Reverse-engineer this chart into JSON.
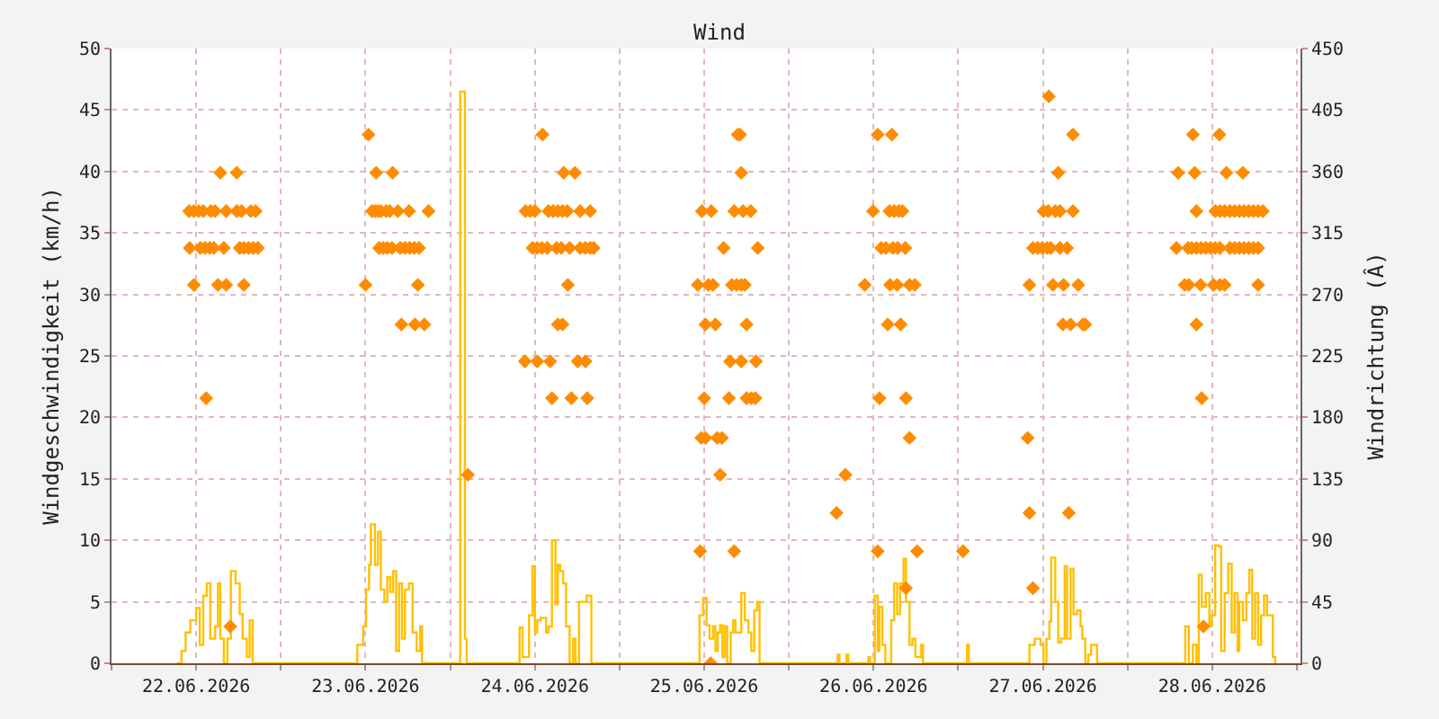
{
  "chart_data": {
    "type": "step",
    "title": "Wind",
    "ylabel": "Windgeschwindigkeit (km/h)",
    "y2label": "Windrichtung (Â)",
    "xlim": [
      "2026-06-21T12:00",
      "2026-06-28T12:30"
    ],
    "xticks": [
      {
        "value": "2026-06-21T12:00",
        "label": null
      },
      {
        "value": "2026-06-22",
        "label": "22.06.2026"
      },
      {
        "value": "2026-06-22T12:00",
        "label": null
      },
      {
        "value": "2026-06-23",
        "label": "23.06.2026"
      },
      {
        "value": "2026-06-23T12:00",
        "label": null
      },
      {
        "value": "2026-06-24",
        "label": "24.06.2026"
      },
      {
        "value": "2026-06-24T12:00",
        "label": null
      },
      {
        "value": "2026-06-25",
        "label": "25.06.2026"
      },
      {
        "value": "2026-06-25T12:00",
        "label": null
      },
      {
        "value": "2026-06-26",
        "label": "26.06.2026"
      },
      {
        "value": "2026-06-26T12:00",
        "label": null
      },
      {
        "value": "2026-06-27",
        "label": "27.06.2026"
      },
      {
        "value": "2026-06-27T12:00",
        "label": null
      },
      {
        "value": "2026-06-28",
        "label": "28.06.2026"
      },
      {
        "value": "2026-06-28T12:00",
        "label": null
      }
    ],
    "ylim": [
      0,
      50
    ],
    "yticks": [
      0,
      5,
      10,
      15,
      20,
      25,
      30,
      35,
      40,
      45,
      50
    ],
    "y2lim": [
      0,
      450
    ],
    "y2ticks": [
      0,
      45,
      90,
      135,
      180,
      225,
      270,
      315,
      360,
      405,
      450
    ],
    "grid": true,
    "series": [
      {
        "color": "#ffc000",
        "x": [
          "2026-06-21T21:15",
          "2026-06-21T21:55",
          "2026-06-21T22:30",
          "2026-06-21T23:10",
          "2026-06-22T00:00",
          "2026-06-22T00:30",
          "2026-06-22T01:00",
          "2026-06-22T01:30",
          "2026-06-22T02:00",
          "2026-06-22T02:40",
          "2026-06-22T03:05",
          "2026-06-22T03:25",
          "2026-06-22T03:55",
          "2026-06-22T04:25",
          "2026-06-22T04:55",
          "2026-06-22T05:35",
          "2026-06-22T06:10",
          "2026-06-22T06:35",
          "2026-06-22T07:10",
          "2026-06-22T07:35",
          "2026-06-22T08:00",
          "2026-06-22T22:50",
          "2026-06-22T23:40",
          "2026-06-23T00:05",
          "2026-06-23T00:30",
          "2026-06-23T00:45",
          "2026-06-23T01:20",
          "2026-06-23T01:45",
          "2026-06-23T02:10",
          "2026-06-23T02:40",
          "2026-06-23T03:05",
          "2026-06-23T03:30",
          "2026-06-23T03:55",
          "2026-06-23T04:20",
          "2026-06-23T04:45",
          "2026-06-23T05:10",
          "2026-06-23T05:35",
          "2026-06-23T06:10",
          "2026-06-23T06:40",
          "2026-06-23T07:15",
          "2026-06-23T07:45",
          "2026-06-23T08:00",
          "2026-06-23T13:25",
          "2026-06-23T14:05",
          "2026-06-23T14:20",
          "2026-06-23T21:50",
          "2026-06-23T22:15",
          "2026-06-23T22:55",
          "2026-06-23T23:10",
          "2026-06-23T23:40",
          "2026-06-24T00:00",
          "2026-06-24T00:20",
          "2026-06-24T00:50",
          "2026-06-24T01:35",
          "2026-06-24T01:55",
          "2026-06-24T02:25",
          "2026-06-24T02:55",
          "2026-06-24T03:15",
          "2026-06-24T03:35",
          "2026-06-24T04:00",
          "2026-06-24T04:25",
          "2026-06-24T04:55",
          "2026-06-24T05:25",
          "2026-06-24T05:45",
          "2026-06-24T06:15",
          "2026-06-24T06:50",
          "2026-06-24T07:20",
          "2026-06-24T08:00",
          "2026-06-24T23:20",
          "2026-06-24T23:50",
          "2026-06-25T00:20",
          "2026-06-25T00:45",
          "2026-06-25T01:15",
          "2026-06-25T01:35",
          "2026-06-25T01:55",
          "2026-06-25T02:15",
          "2026-06-25T02:35",
          "2026-06-25T02:55",
          "2026-06-25T03:15",
          "2026-06-25T03:45",
          "2026-06-25T04:05",
          "2026-06-25T04:25",
          "2026-06-25T04:45",
          "2026-06-25T05:15",
          "2026-06-25T05:45",
          "2026-06-25T06:15",
          "2026-06-25T06:40",
          "2026-06-25T07:05",
          "2026-06-25T07:30",
          "2026-06-25T07:50",
          "2026-06-25T18:55",
          "2026-06-25T19:10",
          "2026-06-25T20:10",
          "2026-06-25T20:25",
          "2026-06-25T23:15",
          "2026-06-25T23:30",
          "2026-06-26T00:10",
          "2026-06-26T00:35",
          "2026-06-26T00:50",
          "2026-06-26T01:15",
          "2026-06-26T01:40",
          "2026-06-26T02:30",
          "2026-06-26T02:55",
          "2026-06-26T03:20",
          "2026-06-26T03:45",
          "2026-06-26T04:15",
          "2026-06-26T04:35",
          "2026-06-26T05:05",
          "2026-06-26T05:30",
          "2026-06-26T05:55",
          "2026-06-26T06:45",
          "2026-06-26T07:00",
          "2026-06-26T13:15",
          "2026-06-26T13:30",
          "2026-06-26T22:05",
          "2026-06-26T22:50",
          "2026-06-26T23:40",
          "2026-06-27T00:05",
          "2026-06-27T00:30",
          "2026-06-27T00:55",
          "2026-06-27T01:10",
          "2026-06-27T01:45",
          "2026-06-27T02:10",
          "2026-06-27T02:35",
          "2026-06-27T03:05",
          "2026-06-27T03:25",
          "2026-06-27T03:55",
          "2026-06-27T04:20",
          "2026-06-27T04:50",
          "2026-06-27T05:20",
          "2026-06-27T05:35",
          "2026-06-27T06:00",
          "2026-06-27T06:25",
          "2026-06-27T06:50",
          "2026-06-27T07:40",
          "2026-06-27T20:10",
          "2026-06-27T20:40",
          "2026-06-27T21:15",
          "2026-06-27T21:45",
          "2026-06-27T22:05",
          "2026-06-27T22:30",
          "2026-06-27T23:05",
          "2026-06-27T23:35",
          "2026-06-27T23:55",
          "2026-06-28T00:25",
          "2026-06-28T00:55",
          "2026-06-28T01:15",
          "2026-06-28T01:45",
          "2026-06-28T02:15",
          "2026-06-28T02:45",
          "2026-06-28T03:10",
          "2026-06-28T03:35",
          "2026-06-28T03:50",
          "2026-06-28T04:20",
          "2026-06-28T04:50",
          "2026-06-28T05:15",
          "2026-06-28T05:40",
          "2026-06-28T06:05",
          "2026-06-28T06:30",
          "2026-06-28T06:55",
          "2026-06-28T07:20",
          "2026-06-28T07:45",
          "2026-06-28T08:15",
          "2026-06-28T08:35",
          "2026-06-28T08:55"
        ],
        "values": [
          0,
          1,
          2.5,
          3.5,
          4.5,
          1.5,
          5.5,
          6.5,
          2,
          3,
          6.5,
          2,
          0,
          2,
          7.5,
          6.5,
          4,
          2,
          0.5,
          3.5,
          0,
          1.5,
          3,
          6,
          8,
          11.3,
          8,
          10.7,
          6,
          5,
          7,
          5.8,
          7.5,
          1,
          6.5,
          2,
          6,
          6.5,
          2.5,
          1,
          3,
          0,
          46.5,
          2,
          0,
          2.9,
          0.5,
          0.5,
          3.9,
          7.9,
          2.5,
          3.5,
          3.7,
          2.5,
          3,
          10,
          4.8,
          8,
          7.5,
          6.5,
          3,
          0,
          2,
          0,
          5,
          5,
          5.5,
          0,
          3.9,
          5.3,
          3.1,
          2,
          3,
          1,
          2.5,
          3.1,
          0.5,
          3,
          0,
          2.5,
          3.5,
          2.5,
          2.5,
          5.7,
          3.5,
          2.5,
          1,
          4.3,
          5,
          0,
          0.7,
          0,
          0.7,
          0,
          0.5,
          0,
          5.5,
          1,
          4.6,
          1.5,
          0,
          3.5,
          6.5,
          4,
          6.5,
          8.5,
          5,
          1.5,
          2,
          0.5,
          1.5,
          0,
          1.5,
          0,
          1.5,
          2,
          1.5,
          0,
          2,
          3.4,
          8.6,
          5,
          1.7,
          2,
          7.9,
          2,
          7.7,
          4,
          4.3,
          3,
          2,
          0,
          0.7,
          1.5,
          0,
          3,
          0,
          1.5,
          0,
          7.2,
          4.6,
          5.7,
          3,
          3.9,
          9.6,
          9.5,
          1,
          5.7,
          8.1,
          2.5,
          5.7,
          1,
          5,
          3.5,
          5.7,
          7.6,
          2,
          5.7,
          1.5,
          3.9,
          5.5,
          3.9,
          3.9,
          0.5,
          0
        ]
      },
      {
        "type": "scatter",
        "axis": "y2",
        "marker": "diamond",
        "color": "#ff8c00",
        "x": [
          "2026-06-22T03:25",
          "2026-06-22T05:45",
          "2026-06-21T23:00",
          "2026-06-21T23:40",
          "2026-06-22T00:20",
          "2026-06-22T01:00",
          "2026-06-22T02:05",
          "2026-06-22T02:40",
          "2026-06-22T04:15",
          "2026-06-22T05:45",
          "2026-06-22T06:25",
          "2026-06-22T07:45",
          "2026-06-22T08:25",
          "2026-06-21T23:05",
          "2026-06-22T00:35",
          "2026-06-22T01:15",
          "2026-06-22T01:55",
          "2026-06-22T02:30",
          "2026-06-22T03:55",
          "2026-06-22T06:10",
          "2026-06-22T06:45",
          "2026-06-22T07:25",
          "2026-06-22T08:05",
          "2026-06-22T08:45",
          "2026-06-21T23:40",
          "2026-06-22T03:05",
          "2026-06-22T04:15",
          "2026-06-22T06:45",
          "2026-06-22T01:25",
          "2026-06-22T04:50",
          "2026-06-23T00:25",
          "2026-06-23T01:30",
          "2026-06-23T03:50",
          "2026-06-23T00:55",
          "2026-06-23T01:20",
          "2026-06-23T01:45",
          "2026-06-23T02:10",
          "2026-06-23T02:55",
          "2026-06-23T03:25",
          "2026-06-23T04:35",
          "2026-06-23T06:10",
          "2026-06-23T08:55",
          "2026-06-23T01:55",
          "2026-06-23T02:30",
          "2026-06-23T03:05",
          "2026-06-23T03:45",
          "2026-06-23T04:55",
          "2026-06-23T05:35",
          "2026-06-23T06:15",
          "2026-06-23T06:55",
          "2026-06-23T07:35",
          "2026-06-23T00:00",
          "2026-06-23T07:25",
          "2026-06-23T05:05",
          "2026-06-23T07:00",
          "2026-06-23T08:20",
          "2026-06-23T14:30",
          "2026-06-24T01:05",
          "2026-06-24T04:05",
          "2026-06-24T05:40",
          "2026-06-23T22:40",
          "2026-06-23T23:20",
          "2026-06-24T00:00",
          "2026-06-24T01:55",
          "2026-06-24T02:35",
          "2026-06-24T03:15",
          "2026-06-24T03:55",
          "2026-06-24T04:35",
          "2026-06-24T06:25",
          "2026-06-24T07:50",
          "2026-06-23T23:40",
          "2026-06-24T00:20",
          "2026-06-24T01:00",
          "2026-06-24T01:45",
          "2026-06-24T03:05",
          "2026-06-24T03:45",
          "2026-06-24T04:55",
          "2026-06-24T06:25",
          "2026-06-24T07:10",
          "2026-06-24T07:50",
          "2026-06-24T08:20",
          "2026-06-24T04:40",
          "2026-06-24T03:15",
          "2026-06-24T03:55",
          "2026-06-23T22:35",
          "2026-06-24T00:20",
          "2026-06-24T02:10",
          "2026-06-24T06:05",
          "2026-06-24T07:10",
          "2026-06-24T02:25",
          "2026-06-24T05:10",
          "2026-06-24T07:25",
          "2026-06-25T04:45",
          "2026-06-25T05:05",
          "2026-06-25T05:15",
          "2026-06-24T23:40",
          "2026-06-25T01:00",
          "2026-06-25T04:15",
          "2026-06-25T05:30",
          "2026-06-25T06:35",
          "2026-06-25T02:45",
          "2026-06-25T07:35",
          "2026-06-24T23:05",
          "2026-06-25T00:35",
          "2026-06-25T01:15",
          "2026-06-25T03:55",
          "2026-06-25T04:35",
          "2026-06-25T05:15",
          "2026-06-25T05:45",
          "2026-06-25T00:10",
          "2026-06-25T01:35",
          "2026-06-25T06:00",
          "2026-06-25T03:40",
          "2026-06-25T05:15",
          "2026-06-25T07:20",
          "2026-06-25T00:00",
          "2026-06-25T03:30",
          "2026-06-25T06:00",
          "2026-06-25T06:40",
          "2026-06-25T07:15",
          "2026-06-24T23:35",
          "2026-06-25T00:10",
          "2026-06-25T01:50",
          "2026-06-25T02:30",
          "2026-06-25T02:15",
          "2026-06-24T23:25",
          "2026-06-25T04:15",
          "2026-06-25T00:55",
          "2026-06-26T00:35",
          "2026-06-26T02:35",
          "2026-06-25T23:55",
          "2026-06-26T02:15",
          "2026-06-26T02:55",
          "2026-06-26T03:35",
          "2026-06-26T04:05",
          "2026-06-26T01:05",
          "2026-06-26T01:45",
          "2026-06-26T02:45",
          "2026-06-26T03:25",
          "2026-06-26T04:30",
          "2026-06-25T22:45",
          "2026-06-26T02:20",
          "2026-06-26T03:20",
          "2026-06-26T05:05",
          "2026-06-26T05:50",
          "2026-06-26T02:00",
          "2026-06-26T03:50",
          "2026-06-26T00:50",
          "2026-06-26T04:35",
          "2026-06-26T05:05",
          "2026-06-25T20:00",
          "2026-06-25T18:45",
          "2026-06-26T00:35",
          "2026-06-26T06:10",
          "2026-06-26T12:40",
          "2026-06-26T04:35",
          "2026-06-27T00:50",
          "2026-06-27T04:15",
          "2026-06-27T02:10",
          "2026-06-27T00:05",
          "2026-06-27T00:45",
          "2026-06-27T01:45",
          "2026-06-27T02:25",
          "2026-06-27T04:15",
          "2026-06-26T22:35",
          "2026-06-26T23:15",
          "2026-06-26T23:55",
          "2026-06-27T00:35",
          "2026-06-27T01:05",
          "2026-06-27T02:25",
          "2026-06-27T03:25",
          "2026-06-26T22:05",
          "2026-06-27T01:25",
          "2026-06-27T02:55",
          "2026-06-27T05:00",
          "2026-06-27T02:50",
          "2026-06-27T03:55",
          "2026-06-27T05:40",
          "2026-06-27T06:00",
          "2026-06-26T21:50",
          "2026-06-26T22:05",
          "2026-06-27T03:40",
          "2026-06-26T22:35",
          "2026-06-27T21:15",
          "2026-06-28T01:00",
          "2026-06-27T19:10",
          "2026-06-27T21:30",
          "2026-06-28T02:00",
          "2026-06-28T04:20",
          "2026-06-27T21:45",
          "2026-06-28T00:25",
          "2026-06-28T01:05",
          "2026-06-28T01:45",
          "2026-06-28T02:30",
          "2026-06-28T03:10",
          "2026-06-28T03:50",
          "2026-06-28T04:30",
          "2026-06-28T05:10",
          "2026-06-28T05:50",
          "2026-06-28T06:30",
          "2026-06-28T07:10",
          "2026-06-27T18:55",
          "2026-06-27T20:35",
          "2026-06-27T21:05",
          "2026-06-27T21:45",
          "2026-06-27T22:25",
          "2026-06-27T23:05",
          "2026-06-27T23:45",
          "2026-06-28T00:25",
          "2026-06-28T01:05",
          "2026-06-28T02:30",
          "2026-06-28T03:10",
          "2026-06-28T03:50",
          "2026-06-28T04:30",
          "2026-06-28T05:10",
          "2026-06-28T05:50",
          "2026-06-28T06:30",
          "2026-06-27T20:05",
          "2026-06-27T20:40",
          "2026-06-27T22:20",
          "2026-06-28T00:10",
          "2026-06-28T01:05",
          "2026-06-28T01:45",
          "2026-06-28T06:30",
          "2026-06-27T21:45",
          "2026-06-27T22:30",
          "2026-06-27T22:45"
        ],
        "values": [
          359,
          359,
          331,
          331,
          331,
          331,
          331,
          331,
          331,
          331,
          331,
          331,
          331,
          304,
          304,
          304,
          304,
          304,
          304,
          304,
          304,
          304,
          304,
          304,
          277,
          277,
          277,
          277,
          194,
          27,
          387,
          359,
          359,
          331,
          331,
          331,
          331,
          331,
          331,
          331,
          331,
          331,
          304,
          304,
          304,
          304,
          304,
          304,
          304,
          304,
          304,
          277,
          277,
          248,
          248,
          248,
          138,
          387,
          359,
          359,
          331,
          331,
          331,
          331,
          331,
          331,
          331,
          331,
          331,
          331,
          304,
          304,
          304,
          304,
          304,
          304,
          304,
          304,
          304,
          304,
          304,
          277,
          248,
          248,
          221,
          221,
          221,
          221,
          221,
          194,
          194,
          194,
          387,
          387,
          359,
          331,
          331,
          331,
          331,
          331,
          304,
          304,
          277,
          277,
          277,
          277,
          277,
          277,
          277,
          248,
          248,
          248,
          221,
          221,
          221,
          194,
          194,
          194,
          194,
          194,
          165,
          165,
          165,
          165,
          138,
          82,
          82,
          0,
          387,
          387,
          331,
          331,
          331,
          331,
          331,
          304,
          304,
          304,
          304,
          304,
          277,
          277,
          277,
          277,
          277,
          248,
          248,
          194,
          194,
          165,
          138,
          110,
          82,
          82,
          82,
          55,
          415,
          387,
          359,
          331,
          331,
          331,
          331,
          331,
          304,
          304,
          304,
          304,
          304,
          304,
          304,
          277,
          277,
          277,
          277,
          248,
          248,
          248,
          248,
          165,
          110,
          110,
          55,
          387,
          387,
          359,
          359,
          359,
          359,
          331,
          331,
          331,
          331,
          331,
          331,
          331,
          331,
          331,
          331,
          331,
          331,
          304,
          304,
          304,
          304,
          304,
          304,
          304,
          304,
          304,
          304,
          304,
          304,
          304,
          304,
          304,
          304,
          277,
          277,
          277,
          277,
          277,
          277,
          277,
          248,
          194,
          27
        ]
      }
    ]
  }
}
